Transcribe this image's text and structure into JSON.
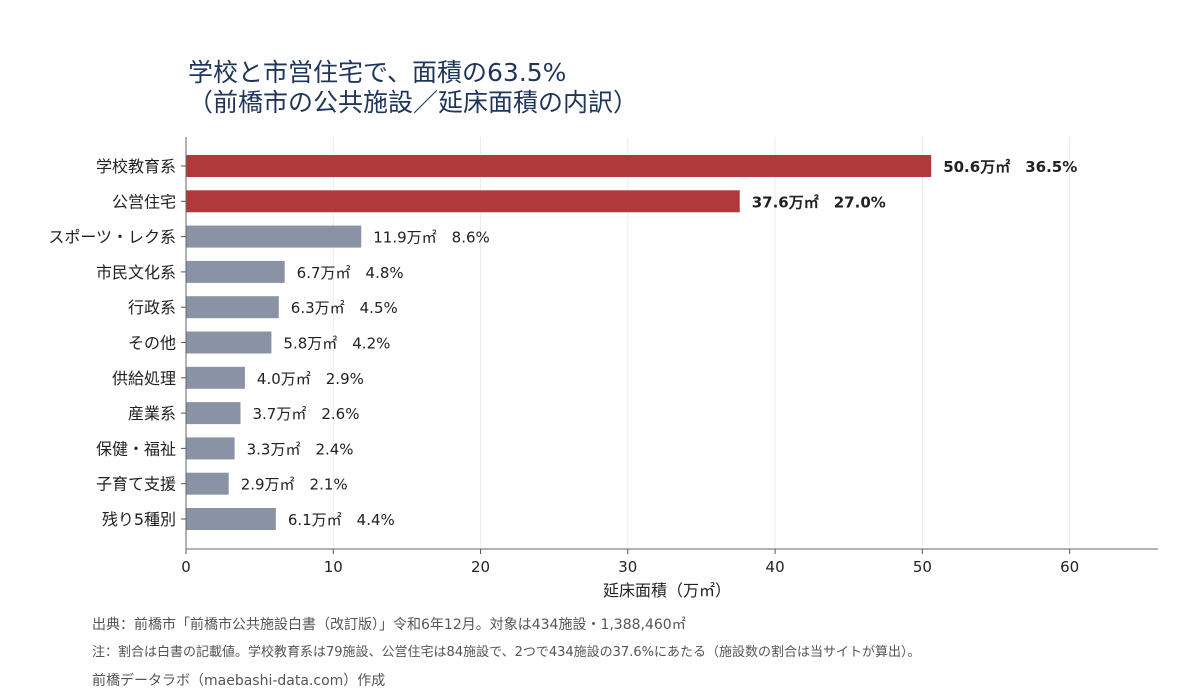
{
  "title": {
    "line1": "学校と市営住宅で、面積の63.5%",
    "line2": "（前橋市の公共施設／延床面積の内訳）"
  },
  "chart_data": {
    "type": "bar",
    "orientation": "horizontal",
    "categories": [
      "学校教育系",
      "公営住宅",
      "スポーツ・レク系",
      "市民文化系",
      "行政系",
      "その他",
      "供給処理",
      "産業系",
      "保健・福祉",
      "子育て支援",
      "残り5種別"
    ],
    "values": [
      50.6,
      37.6,
      11.9,
      6.7,
      6.3,
      5.8,
      4.0,
      3.7,
      3.3,
      2.9,
      6.1
    ],
    "data_labels": [
      "50.6万㎡　36.5%",
      "37.6万㎡　27.0%",
      "11.9万㎡　8.6%",
      "6.7万㎡　4.8%",
      "6.3万㎡　4.5%",
      "5.8万㎡　4.2%",
      "4.0万㎡　2.9%",
      "3.7万㎡　2.6%",
      "3.3万㎡　2.4%",
      "2.9万㎡　2.1%",
      "6.1万㎡　4.4%"
    ],
    "highlight": [
      true,
      true,
      false,
      false,
      false,
      false,
      false,
      false,
      false,
      false,
      false
    ],
    "xlabel": "延床面積（万㎡）",
    "xlim": [
      0,
      66
    ],
    "xticks": [
      0,
      10,
      20,
      30,
      40,
      50,
      60
    ],
    "grid": true,
    "colors": {
      "highlight": "#b0393b",
      "normal": "#8a93a5"
    }
  },
  "notes": {
    "source": "出典：前橋市「前橋市公共施設白書（改訂版）」令和6年12月。対象は434施設・1,388,460㎡",
    "note": "注：割合は白書の記載値。学校教育系は79施設、公営住宅は84施設で、2つで434施設の37.6%にあたる（施設数の割合は当サイトが算出）。",
    "credit": "前橋データラボ（maebashi-data.com）作成"
  }
}
